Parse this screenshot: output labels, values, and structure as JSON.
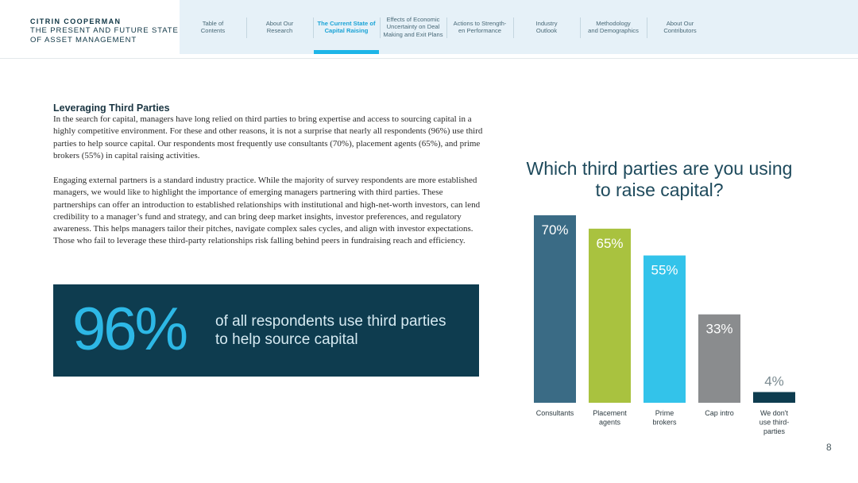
{
  "brand": {
    "name": "CITRIN COOPERMAN",
    "subtitle_line1": "THE PRESENT AND FUTURE STATE",
    "subtitle_line2": "OF ASSET MANAGEMENT"
  },
  "nav": {
    "items": [
      {
        "line1": "Table of",
        "line2": "Contents",
        "active": false
      },
      {
        "line1": "About Our",
        "line2": "Research",
        "active": false
      },
      {
        "line1": "The Current State of",
        "line2": "Capital Raising",
        "active": true
      },
      {
        "line1": "Effects of Economic",
        "line2": "Uncertainty on Deal",
        "line3": "Making and Exit Plans",
        "active": false
      },
      {
        "line1": "Actions to Strength-",
        "line2": "en Performance",
        "active": false
      },
      {
        "line1": "Industry",
        "line2": "Outlook",
        "active": false
      },
      {
        "line1": "Methodology",
        "line2": "and Demographics",
        "active": false
      },
      {
        "line1": "About Our",
        "line2": "Contributors",
        "active": false
      }
    ],
    "active_color": "#1eb5e8"
  },
  "content": {
    "section_title": "Leveraging Third Parties",
    "paragraph1": "In the search for capital, managers have long relied on third parties to bring expertise and access to sourcing capital in a highly competitive environment. For these and other reasons, it is not a surprise that nearly all respondents (96%) use third parties to help source capital. Our respondents most frequently use consultants (70%), placement agents (65%), and prime brokers (55%) in capital raising activities.",
    "paragraph2": "Engaging external partners is a standard industry practice. While the majority of survey respondents are more established managers, we would like to highlight the importance of emerging managers partnering with third parties. These partnerships can offer an introduction to established relationships with institutional and high-net-worth investors, can lend credibility to a manager’s fund and strategy, and can bring deep market insights, investor preferences, and regulatory awareness. This helps managers tailor their pitches, navigate complex sales cycles, and align with investor expectations. Those who fail to leverage these third-party relationships risk falling behind peers in fundraising reach and efficiency."
  },
  "callout": {
    "stat": "96%",
    "text": "of all respondents use third parties to help source capital",
    "background": "#0e3c4f",
    "stat_color": "#2db8e6"
  },
  "chart_data": {
    "type": "bar",
    "title": "Which third parties are you using to raise capital?",
    "categories": [
      "Consultants",
      "Placement agents",
      "Prime brokers",
      "Cap intro",
      "We don't use third-parties"
    ],
    "category_label_lines": [
      [
        "Consultants"
      ],
      [
        "Placement",
        "agents"
      ],
      [
        "Prime",
        "brokers"
      ],
      [
        "Cap intro"
      ],
      [
        "We don't",
        "use third-",
        "parties"
      ]
    ],
    "values": [
      70,
      65,
      55,
      33,
      4
    ],
    "value_labels": [
      "70%",
      "65%",
      "55%",
      "33%",
      "4%"
    ],
    "colors": [
      "#3a6b85",
      "#a9c23f",
      "#33c3ea",
      "#8a8c8e",
      "#0e3c4f"
    ],
    "ylim": [
      0,
      70
    ],
    "xlabel": "",
    "ylabel": "",
    "grid": false,
    "legend": "none"
  },
  "page": {
    "number": "8"
  }
}
